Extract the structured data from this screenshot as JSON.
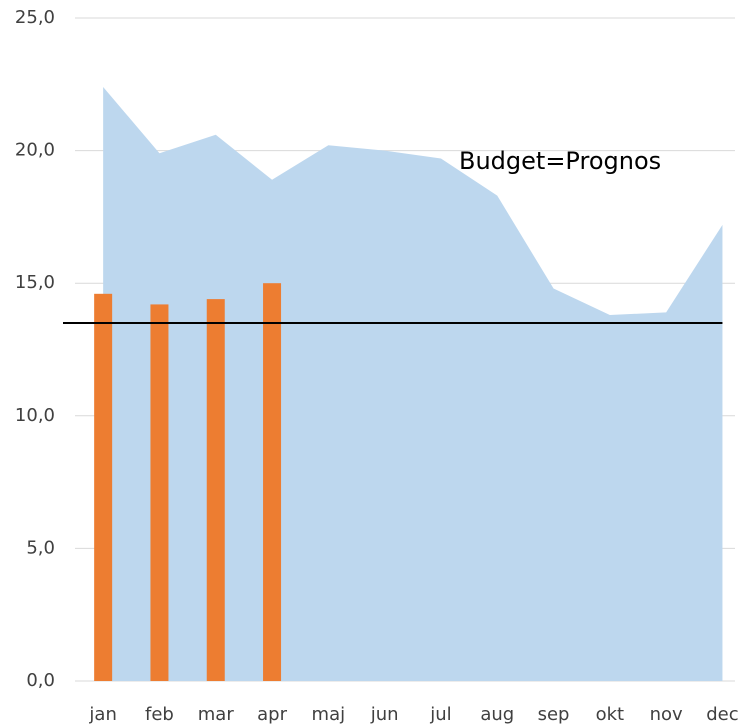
{
  "chart_data": {
    "type": "bar",
    "categories": [
      "jan",
      "feb",
      "mar",
      "apr",
      "maj",
      "jun",
      "jul",
      "aug",
      "sep",
      "okt",
      "nov",
      "dec"
    ],
    "series": [
      {
        "type": "area",
        "color": "#bdd7ee",
        "values": [
          22.4,
          19.9,
          20.6,
          18.9,
          20.2,
          20.0,
          19.7,
          18.3,
          14.8,
          13.8,
          13.9,
          17.2
        ]
      },
      {
        "type": "bar",
        "color": "#ed7d31",
        "values": [
          14.6,
          14.2,
          14.4,
          15.0,
          null,
          null,
          null,
          null,
          null,
          null,
          null,
          null
        ]
      }
    ],
    "reference_line": {
      "value": 13.5,
      "color": "#000000"
    },
    "annotation": "Budget=Prognos",
    "ylim": [
      0,
      25
    ],
    "yticks": [
      {
        "value": 0,
        "label": "0,0"
      },
      {
        "value": 5,
        "label": "5,0"
      },
      {
        "value": 10,
        "label": "10,0"
      },
      {
        "value": 15,
        "label": "15,0"
      },
      {
        "value": 20,
        "label": "20,0"
      },
      {
        "value": 25,
        "label": "25,0"
      }
    ],
    "grid": true
  }
}
